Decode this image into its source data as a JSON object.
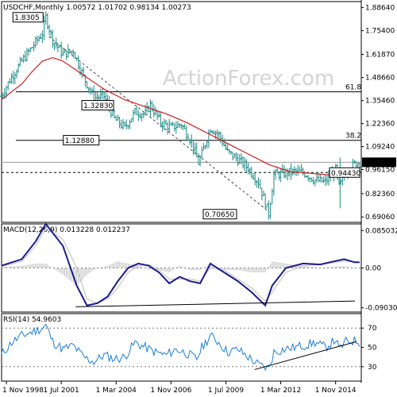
{
  "header": {
    "symbol_timeframe": "USDCHF,Monthly",
    "ohlc": "1.00572 1.01702 0.98134 1.00273"
  },
  "watermark": "ActionForex.com",
  "colors": {
    "candle": "#1f8b86",
    "sma": "#cc1f1f",
    "macd_line": "#1c1c8c",
    "signal_line": "#c8c8c8",
    "rsi_line": "#1e7fd6",
    "trendline": "#000000"
  },
  "chart_data": [
    {
      "type": "line",
      "panel": "price",
      "title": "USDCHF,Monthly",
      "ylim": [
        0.66,
        1.92
      ],
      "x_ticks": [
        "1 Nov 1998",
        "1 Jul 2001",
        "1 Mar 2004",
        "1 Nov 2006",
        "1 Jul 2009",
        "1 Mar 2012",
        "1 Nov 2014"
      ],
      "y_ticks": [
        "1.88640",
        "1.75400",
        "1.61870",
        "1.48660",
        "1.35460",
        "1.22360",
        "1.09240",
        "0.96150",
        "0.82360",
        "0.69060"
      ],
      "y_tick_values": [
        1.8864,
        1.754,
        1.6187,
        1.4866,
        1.3546,
        1.2236,
        1.0924,
        0.9615,
        0.8236,
        0.6906
      ],
      "current_price_label": "1.00273",
      "current_price": 1.00273,
      "series": [
        {
          "name": "USDCHF",
          "x": [
            "1998-08",
            "1999-02",
            "1999-08",
            "2000-02",
            "2000-08",
            "2000-10",
            "2001-02",
            "2001-08",
            "2002-02",
            "2002-08",
            "2003-02",
            "2003-08",
            "2004-02",
            "2004-08",
            "2005-02",
            "2005-08",
            "2005-11",
            "2006-05",
            "2006-11",
            "2007-05",
            "2007-11",
            "2008-03",
            "2008-05",
            "2008-10",
            "2009-03",
            "2009-08",
            "2010-02",
            "2010-08",
            "2011-02",
            "2011-08",
            "2011-11",
            "2012-05",
            "2012-11",
            "2013-05",
            "2013-11",
            "2014-05",
            "2014-11",
            "2015-01",
            "2015-05",
            "2015-11",
            "2016-01"
          ],
          "values": [
            1.38,
            1.49,
            1.58,
            1.66,
            1.74,
            1.83,
            1.7,
            1.62,
            1.64,
            1.49,
            1.37,
            1.38,
            1.25,
            1.2,
            1.29,
            1.28,
            1.33,
            1.23,
            1.2,
            1.22,
            1.12,
            1.0,
            1.05,
            1.2,
            1.16,
            1.06,
            1.02,
            0.97,
            0.89,
            0.71,
            0.93,
            0.94,
            0.95,
            0.94,
            0.9,
            0.89,
            0.96,
            0.86,
            0.95,
            1.0,
            1.0
          ]
        },
        {
          "name": "",
          "x": [
            "1998-08",
            "1999-08",
            "2000-02",
            "2000-08",
            "2001-02",
            "2001-08",
            "2002-08",
            "2003-08",
            "2004-08",
            "2005-08",
            "2006-08",
            "2007-08",
            "2008-08",
            "2009-08",
            "2010-08",
            "2011-08",
            "2012-08",
            "2013-08",
            "2014-08",
            "2015-08",
            "2016-01"
          ],
          "values": [
            1.36,
            1.45,
            1.52,
            1.58,
            1.6,
            1.58,
            1.5,
            1.42,
            1.36,
            1.32,
            1.28,
            1.23,
            1.17,
            1.11,
            1.05,
            0.99,
            0.95,
            0.94,
            0.93,
            0.95,
            0.96
          ]
        }
      ],
      "annotations": [
        {
          "label": "1.8305",
          "value": 1.8305
        },
        {
          "label": "1.32830",
          "value": 1.3283
        },
        {
          "label": "1.12880",
          "value": 1.1288
        },
        {
          "label": "0.94430",
          "value": 0.9443
        },
        {
          "label": "0.70650",
          "value": 0.7065
        }
      ],
      "fib_levels": [
        {
          "label": "61.8",
          "value": 1.405
        },
        {
          "label": "38.2",
          "value": 1.128
        }
      ]
    },
    {
      "type": "line",
      "panel": "macd",
      "title": "MACD(12,26,9) 0.013228 0.012237",
      "ylim": [
        -0.1,
        0.1
      ],
      "y_ticks": [
        "0.085032",
        "0.00",
        "-0.090302"
      ],
      "y_tick_values": [
        0.085032,
        0.0,
        -0.090302
      ],
      "series": [
        {
          "name": "MACD",
          "x": [
            "1998-08",
            "1999-08",
            "2000-04",
            "2000-10",
            "2001-08",
            "2002-04",
            "2002-10",
            "2003-04",
            "2003-10",
            "2004-04",
            "2004-10",
            "2005-04",
            "2005-10",
            "2006-04",
            "2006-10",
            "2007-04",
            "2007-10",
            "2008-04",
            "2008-10",
            "2009-06",
            "2010-02",
            "2010-10",
            "2011-06",
            "2011-10",
            "2012-06",
            "2013-04",
            "2014-02",
            "2014-10",
            "2015-04",
            "2015-10",
            "2016-01"
          ],
          "values": [
            0.005,
            0.02,
            0.06,
            0.1,
            0.05,
            -0.04,
            -0.085,
            -0.08,
            -0.065,
            -0.03,
            0.0,
            0.01,
            0.005,
            -0.01,
            -0.035,
            -0.02,
            -0.03,
            -0.035,
            0.01,
            -0.01,
            -0.03,
            -0.055,
            -0.085,
            -0.04,
            0.0,
            0.01,
            0.008,
            0.015,
            0.02,
            0.013,
            0.013
          ]
        },
        {
          "name": "Signal",
          "x": [
            "1998-08",
            "1999-08",
            "2000-04",
            "2000-10",
            "2001-08",
            "2002-04",
            "2002-10",
            "2003-04",
            "2003-10",
            "2004-04",
            "2004-10",
            "2005-04",
            "2005-10",
            "2006-04",
            "2006-10",
            "2007-04",
            "2007-10",
            "2008-04",
            "2008-10",
            "2009-06",
            "2010-02",
            "2010-10",
            "2011-06",
            "2011-10",
            "2012-06",
            "2013-04",
            "2014-02",
            "2014-10",
            "2015-04",
            "2015-10",
            "2016-01"
          ],
          "values": [
            0.003,
            0.015,
            0.05,
            0.09,
            0.065,
            0.0,
            -0.07,
            -0.08,
            -0.07,
            -0.045,
            -0.01,
            0.005,
            0.008,
            -0.005,
            -0.025,
            -0.025,
            -0.025,
            -0.03,
            0.0,
            -0.005,
            -0.025,
            -0.045,
            -0.075,
            -0.055,
            -0.01,
            0.005,
            0.008,
            0.012,
            0.016,
            0.014,
            0.012
          ]
        }
      ]
    },
    {
      "type": "line",
      "panel": "rsi",
      "title": "RSI(14) 54.9603",
      "ylim": [
        15,
        85
      ],
      "y_ticks": [
        "70",
        "50",
        "30"
      ],
      "y_tick_values": [
        70,
        50,
        30
      ],
      "series": [
        {
          "name": "RSI",
          "x": [
            "1998-08",
            "1999-02",
            "1999-08",
            "2000-02",
            "2000-08",
            "2000-10",
            "2001-02",
            "2001-08",
            "2002-02",
            "2002-08",
            "2003-02",
            "2003-08",
            "2004-02",
            "2004-08",
            "2005-02",
            "2005-08",
            "2006-02",
            "2006-08",
            "2007-02",
            "2007-08",
            "2008-02",
            "2008-05",
            "2008-10",
            "2009-03",
            "2009-08",
            "2010-02",
            "2010-08",
            "2011-02",
            "2011-08",
            "2011-11",
            "2012-05",
            "2012-11",
            "2013-05",
            "2013-11",
            "2014-05",
            "2014-11",
            "2015-01",
            "2015-05",
            "2015-11",
            "2016-01"
          ],
          "values": [
            42,
            55,
            62,
            66,
            70,
            73,
            56,
            48,
            52,
            40,
            35,
            42,
            38,
            40,
            55,
            50,
            45,
            42,
            48,
            44,
            38,
            50,
            62,
            55,
            45,
            48,
            40,
            32,
            28,
            45,
            48,
            50,
            52,
            55,
            50,
            58,
            48,
            56,
            57,
            55
          ]
        }
      ]
    }
  ]
}
